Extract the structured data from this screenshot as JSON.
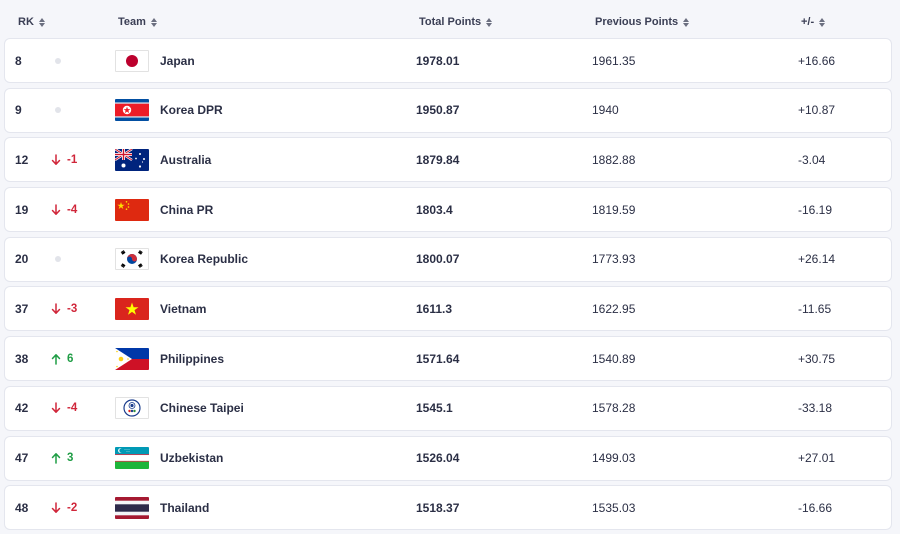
{
  "header": {
    "rk": "RK",
    "team": "Team",
    "total_points": "Total Points",
    "previous_points": "Previous Points",
    "diff": "+/-"
  },
  "rows": [
    {
      "rank": "8",
      "move": "",
      "dir": "none",
      "team": "Japan",
      "flag": "japan",
      "total": "1978.01",
      "prev": "1961.35",
      "diff": "+16.66"
    },
    {
      "rank": "9",
      "move": "",
      "dir": "none",
      "team": "Korea DPR",
      "flag": "korea-dpr",
      "total": "1950.87",
      "prev": "1940",
      "diff": "+10.87"
    },
    {
      "rank": "12",
      "move": "-1",
      "dir": "down",
      "team": "Australia",
      "flag": "australia",
      "total": "1879.84",
      "prev": "1882.88",
      "diff": "-3.04"
    },
    {
      "rank": "19",
      "move": "-4",
      "dir": "down",
      "team": "China PR",
      "flag": "china",
      "total": "1803.4",
      "prev": "1819.59",
      "diff": "-16.19"
    },
    {
      "rank": "20",
      "move": "",
      "dir": "none",
      "team": "Korea Republic",
      "flag": "korea-rep",
      "total": "1800.07",
      "prev": "1773.93",
      "diff": "+26.14"
    },
    {
      "rank": "37",
      "move": "-3",
      "dir": "down",
      "team": "Vietnam",
      "flag": "vietnam",
      "total": "1611.3",
      "prev": "1622.95",
      "diff": "-11.65"
    },
    {
      "rank": "38",
      "move": "6",
      "dir": "up",
      "team": "Philippines",
      "flag": "philippines",
      "total": "1571.64",
      "prev": "1540.89",
      "diff": "+30.75"
    },
    {
      "rank": "42",
      "move": "-4",
      "dir": "down",
      "team": "Chinese Taipei",
      "flag": "taipei",
      "total": "1545.1",
      "prev": "1578.28",
      "diff": "-33.18"
    },
    {
      "rank": "47",
      "move": "3",
      "dir": "up",
      "team": "Uzbekistan",
      "flag": "uzbekistan",
      "total": "1526.04",
      "prev": "1499.03",
      "diff": "+27.01"
    },
    {
      "rank": "48",
      "move": "-2",
      "dir": "down",
      "team": "Thailand",
      "flag": "thailand",
      "total": "1518.37",
      "prev": "1535.03",
      "diff": "-16.66"
    }
  ],
  "colors": {
    "down": "#d0263a",
    "up": "#1f9d45",
    "row_bg": "#ffffff",
    "page_bg": "#f5f6fa"
  }
}
